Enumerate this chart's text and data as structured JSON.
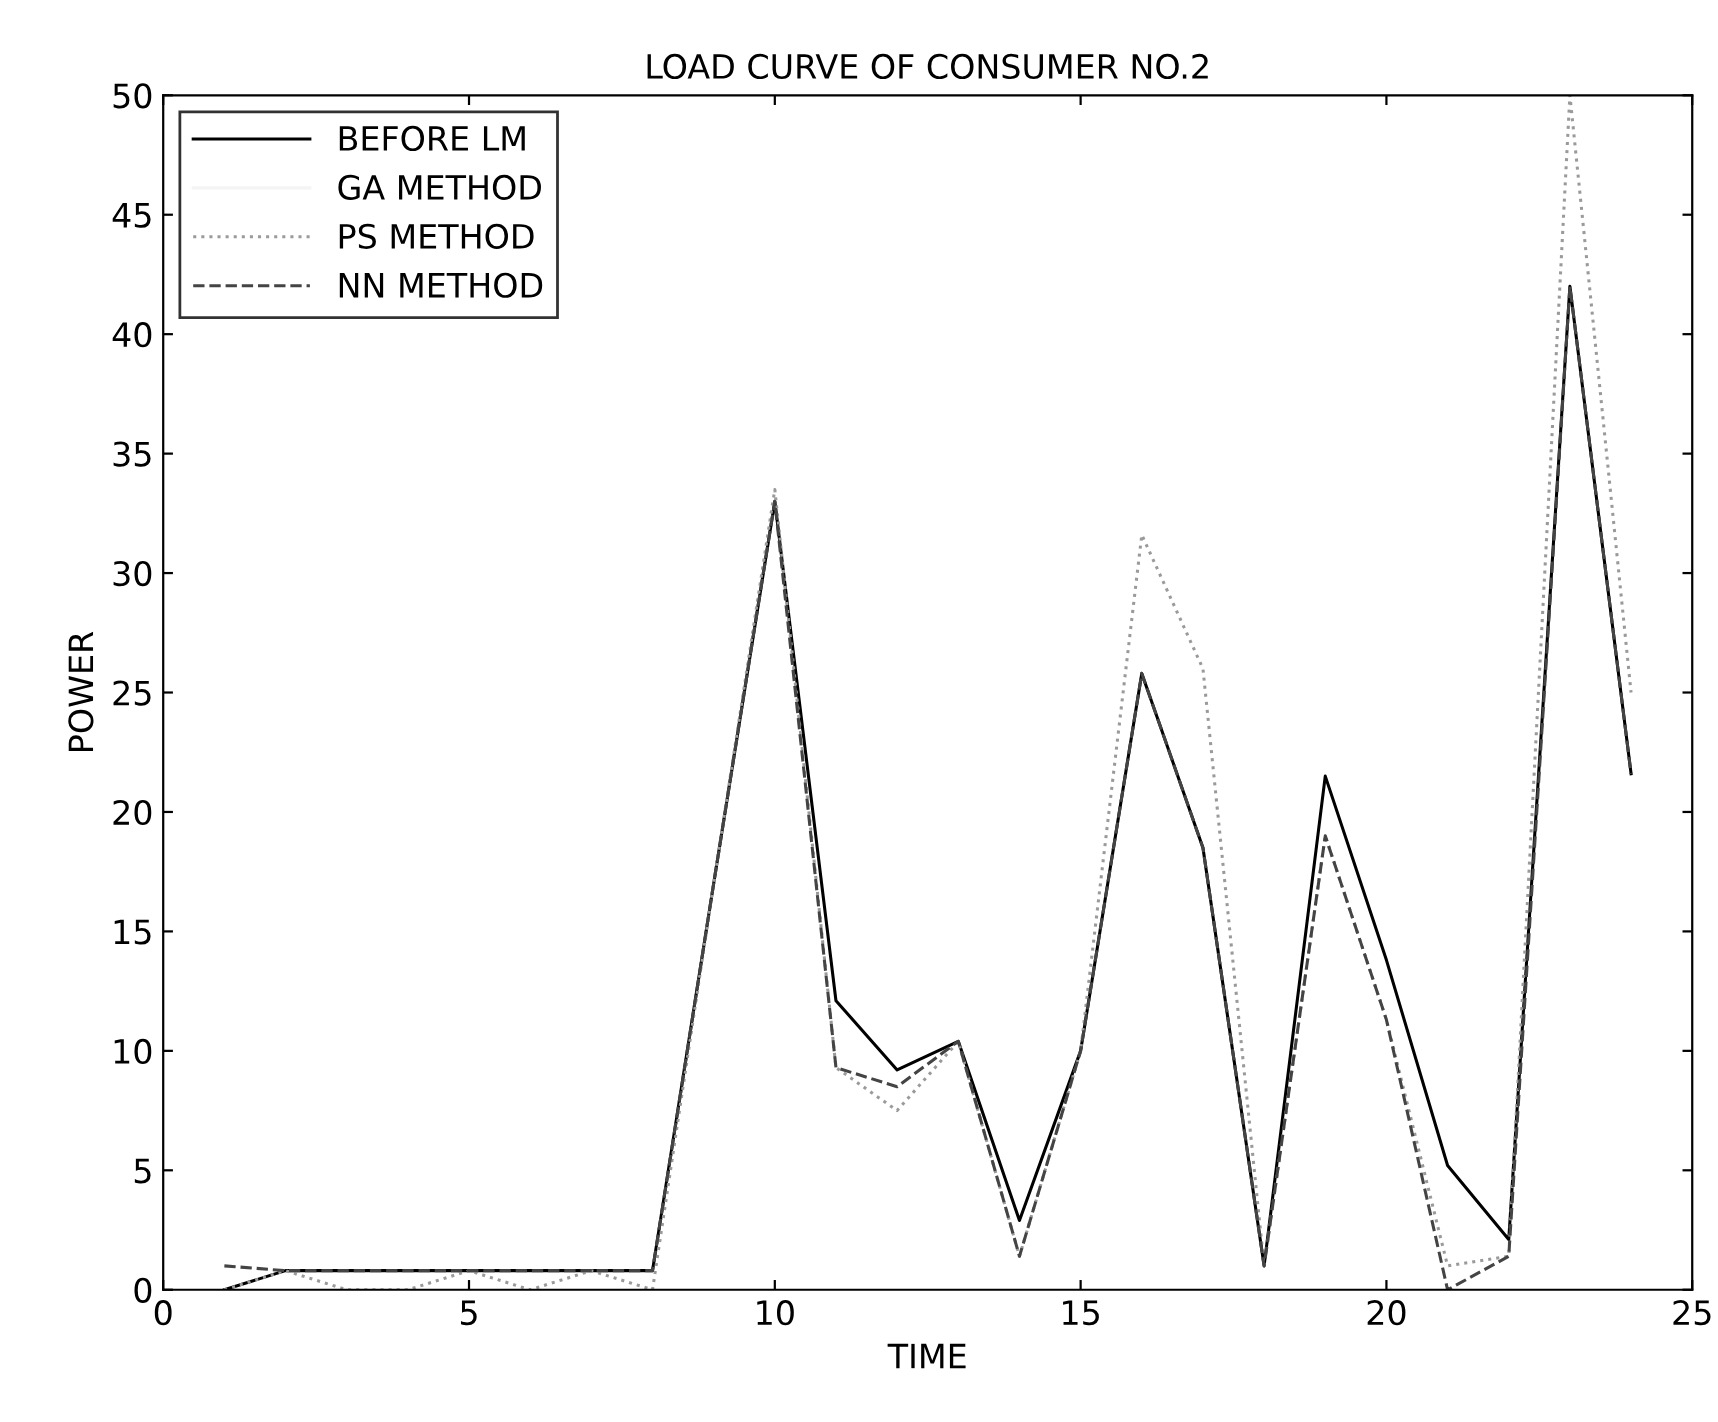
{
  "chart_data": {
    "type": "line",
    "title": "LOAD CURVE OF CONSUMER NO.2",
    "xlabel": "TIME",
    "ylabel": "POWER",
    "x": [
      1,
      2,
      3,
      4,
      5,
      6,
      7,
      8,
      9,
      10,
      11,
      12,
      13,
      14,
      15,
      16,
      17,
      18,
      19,
      20,
      21,
      22,
      23,
      24
    ],
    "series": [
      {
        "name": "BEFORE LM",
        "color": "#000000",
        "line_style": "solid",
        "values": [
          0,
          0.8,
          0.8,
          0.8,
          0.8,
          0.8,
          0.8,
          0.8,
          17,
          33,
          12.1,
          9.2,
          10.4,
          2.9,
          10,
          25.8,
          18.5,
          1,
          21.5,
          13.8,
          5.2,
          2.1,
          42,
          21.6
        ]
      },
      {
        "name": "GA METHOD",
        "color": "#f4f4f4",
        "line_style": "solid",
        "values": [
          null,
          null,
          null,
          null,
          null,
          null,
          null,
          null,
          null,
          null,
          null,
          null,
          null,
          null,
          null,
          null,
          null,
          null,
          null,
          null,
          null,
          null,
          null,
          null
        ]
      },
      {
        "name": "PS METHOD",
        "color": "#9a9a9a",
        "line_style": "dotted",
        "values": [
          0,
          0.8,
          0,
          0,
          0.8,
          0,
          0.8,
          0,
          17,
          33.5,
          9.3,
          7.5,
          10.4,
          1.4,
          10,
          31.6,
          26,
          1,
          19,
          11.3,
          1,
          1.4,
          50,
          25
        ]
      },
      {
        "name": "NN METHOD",
        "color": "#444444",
        "line_style": "dashed",
        "values": [
          1,
          0.8,
          0.8,
          0.8,
          0.8,
          0.8,
          0.8,
          0.8,
          17,
          33,
          9.3,
          8.5,
          10.4,
          1.4,
          10,
          25.8,
          18.5,
          1,
          19,
          11.3,
          0,
          1.4,
          42,
          21.6
        ]
      }
    ],
    "xlim": [
      0,
      25
    ],
    "xticks": [
      0,
      5,
      10,
      15,
      20,
      25
    ],
    "ylim": [
      0,
      50
    ],
    "yticks": [
      0,
      5,
      10,
      15,
      20,
      25,
      30,
      35,
      40,
      45,
      50
    ],
    "grid": false,
    "legend": "top left"
  }
}
